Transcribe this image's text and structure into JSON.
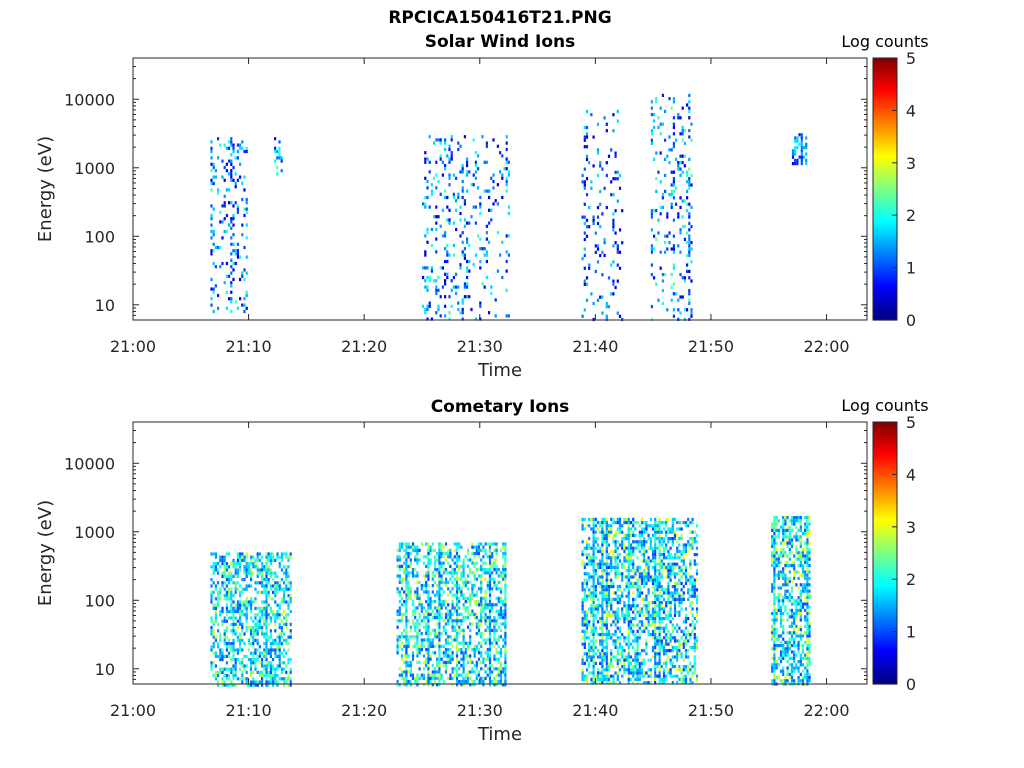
{
  "figure": {
    "title": "RPCICA150416T21.PNG"
  },
  "chart_data": [
    {
      "type": "heatmap",
      "title": "Solar Wind Ions",
      "xlabel": "Time",
      "ylabel": "Energy (eV)",
      "x_ticks": [
        "21:00",
        "21:10",
        "21:20",
        "21:30",
        "21:40",
        "21:50",
        "22:00"
      ],
      "x_range_minutes": [
        0,
        63.5
      ],
      "y_scale": "log",
      "y_range": [
        6,
        40000
      ],
      "y_ticks": [
        10,
        100,
        1000,
        10000
      ],
      "y_tick_labels": [
        "10",
        "100",
        "1000",
        "10000"
      ],
      "colorbar": {
        "label": "Log counts",
        "range": [
          0,
          5
        ],
        "ticks": [
          "0",
          "1",
          "2",
          "3",
          "4",
          "5"
        ],
        "colormap": "jet"
      },
      "grid": false,
      "clusters": [
        {
          "t_start": 6.7,
          "t_end": 9.8,
          "e_min": 8,
          "e_max": 2800,
          "density": 0.18,
          "level": 1.0,
          "peak": 2.3
        },
        {
          "t_start": 12.2,
          "t_end": 12.9,
          "e_min": 850,
          "e_max": 2800,
          "density": 0.35,
          "level": 1.3,
          "peak": 2.5
        },
        {
          "t_start": 25.0,
          "t_end": 32.5,
          "e_min": 6,
          "e_max": 3000,
          "density": 0.12,
          "level": 1.0,
          "peak": 2.2
        },
        {
          "t_start": 38.8,
          "t_end": 42.3,
          "e_min": 6,
          "e_max": 7000,
          "density": 0.09,
          "level": 0.9,
          "peak": 1.8
        },
        {
          "t_start": 44.8,
          "t_end": 48.4,
          "e_min": 6,
          "e_max": 12000,
          "density": 0.16,
          "level": 1.0,
          "peak": 2.4
        },
        {
          "t_start": 57.0,
          "t_end": 58.3,
          "e_min": 1100,
          "e_max": 3200,
          "density": 0.45,
          "level": 1.1,
          "peak": 1.9
        }
      ]
    },
    {
      "type": "heatmap",
      "title": "Cometary Ions",
      "xlabel": "Time",
      "ylabel": "Energy (eV)",
      "x_ticks": [
        "21:00",
        "21:10",
        "21:20",
        "21:30",
        "21:40",
        "21:50",
        "22:00"
      ],
      "x_range_minutes": [
        0,
        63.5
      ],
      "y_scale": "log",
      "y_range": [
        6,
        40000
      ],
      "y_ticks": [
        10,
        100,
        1000,
        10000
      ],
      "y_tick_labels": [
        "10",
        "100",
        "1000",
        "10000"
      ],
      "colorbar": {
        "label": "Log counts",
        "range": [
          0,
          5
        ],
        "ticks": [
          "0",
          "1",
          "2",
          "3",
          "4",
          "5"
        ],
        "colormap": "jet"
      },
      "grid": false,
      "clusters": [
        {
          "t_start": 6.7,
          "t_end": 13.6,
          "e_min": 6,
          "e_max": 500,
          "density": 0.5,
          "level": 1.6,
          "peak": 2.9
        },
        {
          "t_start": 22.8,
          "t_end": 32.3,
          "e_min": 6,
          "e_max": 700,
          "density": 0.45,
          "level": 1.6,
          "peak": 3.0
        },
        {
          "t_start": 38.8,
          "t_end": 48.8,
          "e_min": 6,
          "e_max": 1600,
          "density": 0.5,
          "level": 1.5,
          "peak": 3.1
        },
        {
          "t_start": 55.2,
          "t_end": 58.6,
          "e_min": 6,
          "e_max": 1700,
          "density": 0.55,
          "level": 1.6,
          "peak": 3.2
        }
      ]
    }
  ]
}
